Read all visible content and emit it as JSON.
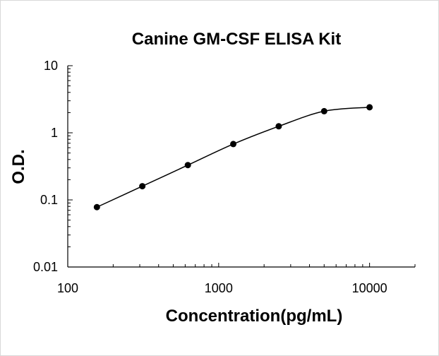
{
  "chart_data": {
    "type": "scatter",
    "title": "Canine GM-CSF ELISA Kit",
    "xlabel": "Concentration(pg/mL)",
    "ylabel": "O.D.",
    "x_scale": "log",
    "y_scale": "log",
    "xlim": [
      100,
      20000
    ],
    "ylim": [
      0.01,
      10
    ],
    "x_ticks": [
      {
        "value": 100,
        "label": "100"
      },
      {
        "value": 1000,
        "label": "1000"
      },
      {
        "value": 10000,
        "label": "10000"
      }
    ],
    "y_ticks": [
      {
        "value": 10,
        "label": "10"
      },
      {
        "value": 1,
        "label": "1"
      },
      {
        "value": 0.1,
        "label": "0.1"
      },
      {
        "value": 0.01,
        "label": "0.01"
      }
    ],
    "grid": false,
    "legend": "none",
    "fit_line": true,
    "series": [
      {
        "x": [
          156,
          312,
          625,
          1250,
          2500,
          5000,
          10000
        ],
        "y": [
          0.078,
          0.16,
          0.33,
          0.68,
          1.25,
          2.1,
          2.4
        ],
        "color": "#000000"
      }
    ]
  }
}
